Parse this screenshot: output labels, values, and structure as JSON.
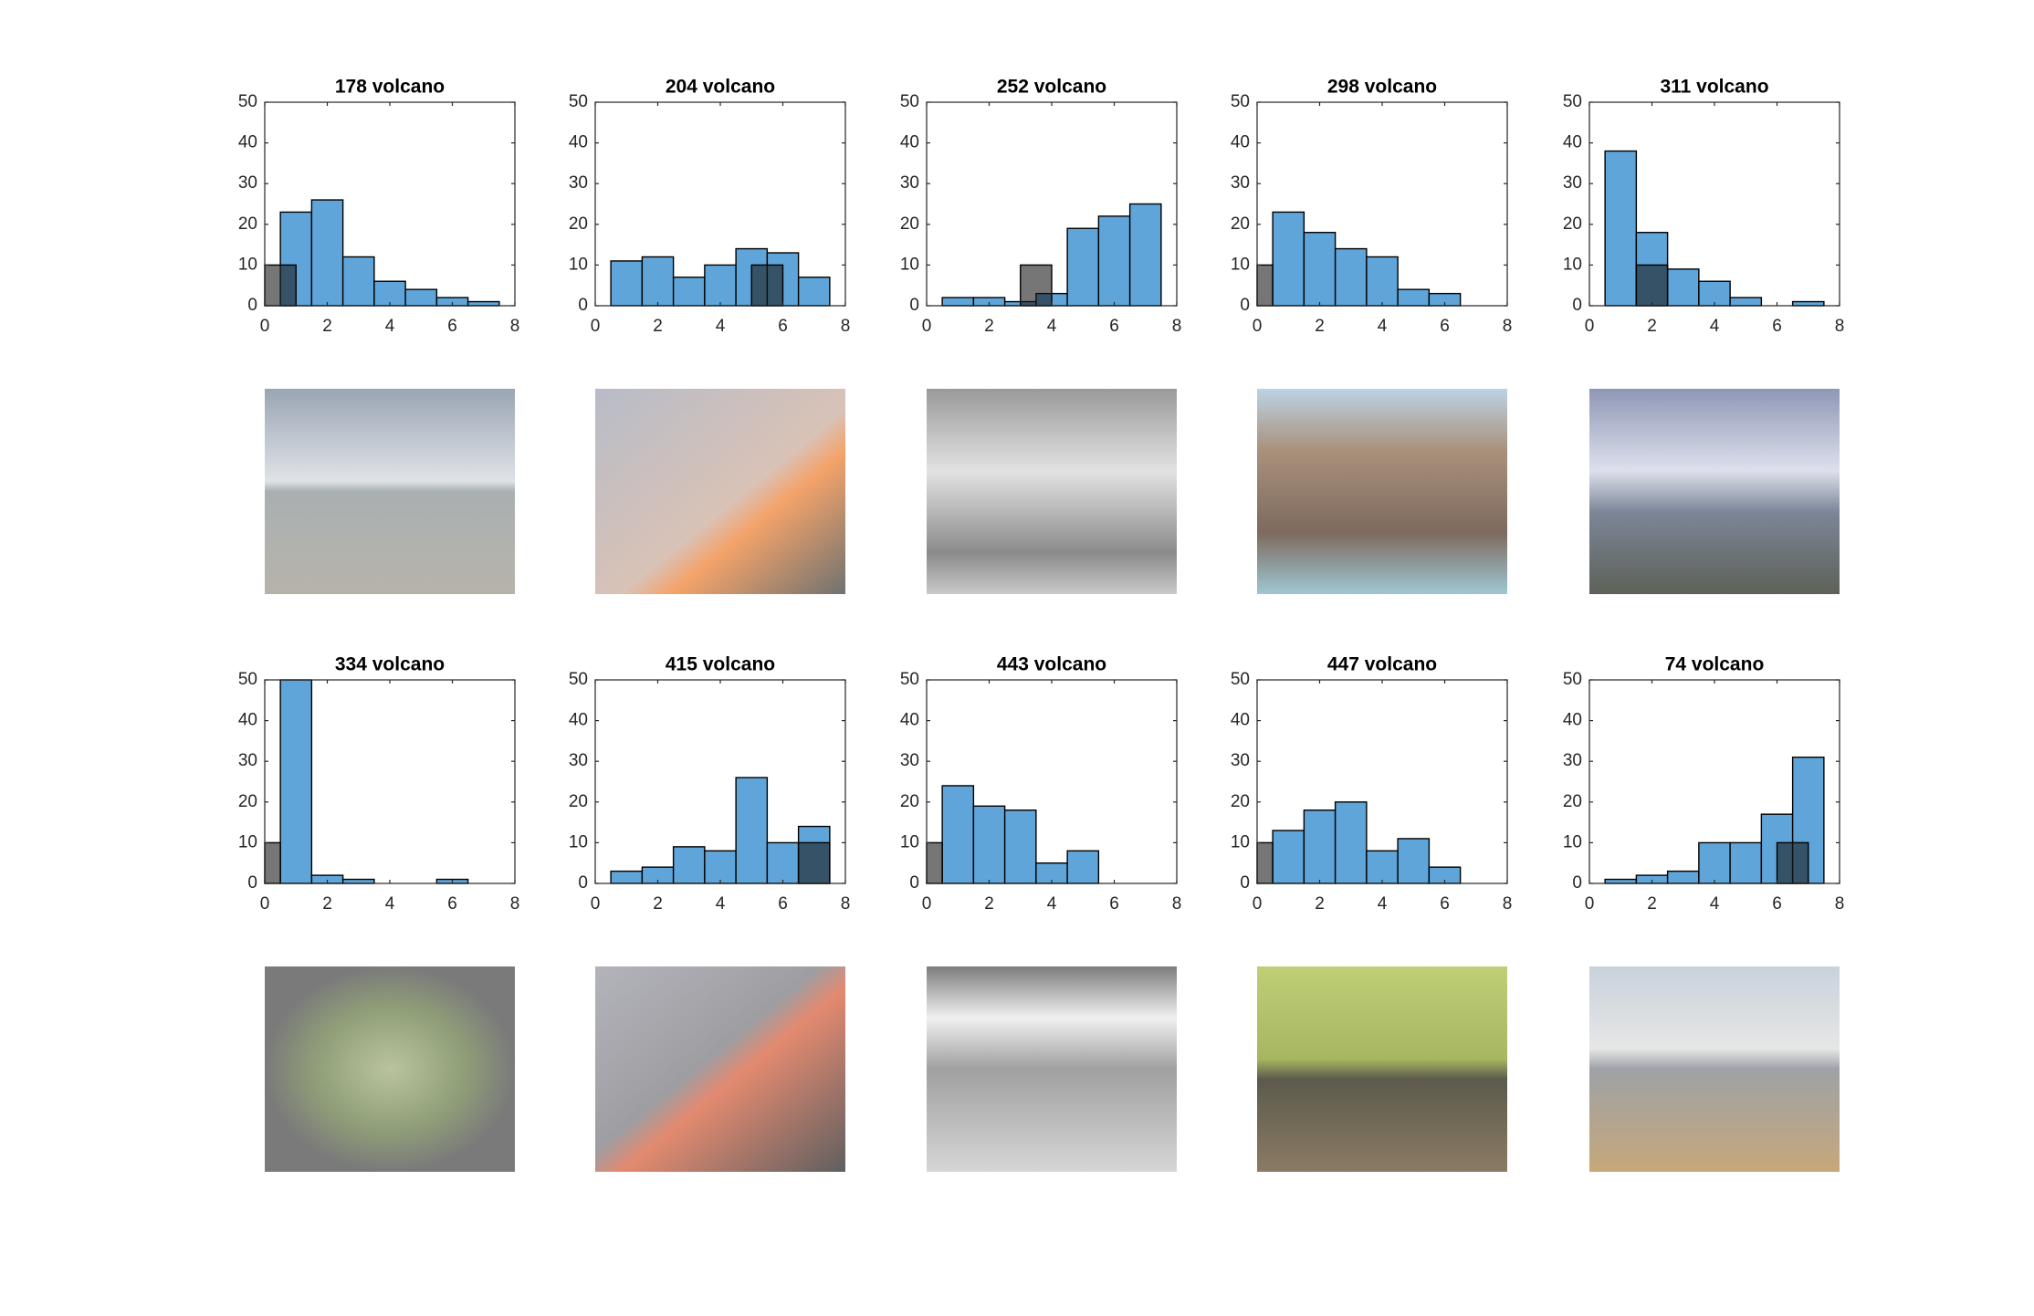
{
  "chart_data": [
    {
      "type": "histogram",
      "title": "178 volcano",
      "xlim": [
        0,
        8
      ],
      "ylim": [
        0,
        50
      ],
      "xticks": [
        0,
        2,
        4,
        6,
        8
      ],
      "yticks": [
        0,
        10,
        20,
        30,
        40,
        50
      ],
      "series": [
        {
          "color": "#5fa5d9",
          "bins": [
            0.5,
            1.5,
            2.5,
            3.5,
            4.5,
            5.5,
            6.5,
            7.5
          ],
          "values": [
            23,
            26,
            12,
            6,
            4,
            2,
            1
          ]
        },
        {
          "color": "#1a1a1a",
          "bins": [
            0,
            1
          ],
          "values": [
            10
          ]
        }
      ]
    },
    {
      "type": "histogram",
      "title": "204 volcano",
      "xlim": [
        0,
        8
      ],
      "ylim": [
        0,
        50
      ],
      "xticks": [
        0,
        2,
        4,
        6,
        8
      ],
      "yticks": [
        0,
        10,
        20,
        30,
        40,
        50
      ],
      "series": [
        {
          "color": "#5fa5d9",
          "bins": [
            0.5,
            1.5,
            2.5,
            3.5,
            4.5,
            5.5,
            6.5,
            7.5
          ],
          "values": [
            11,
            12,
            7,
            10,
            14,
            13,
            7
          ]
        },
        {
          "color": "#1a1a1a",
          "bins": [
            5,
            6
          ],
          "values": [
            10
          ]
        }
      ]
    },
    {
      "type": "histogram",
      "title": "252 volcano",
      "xlim": [
        0,
        8
      ],
      "ylim": [
        0,
        50
      ],
      "xticks": [
        0,
        2,
        4,
        6,
        8
      ],
      "yticks": [
        0,
        10,
        20,
        30,
        40,
        50
      ],
      "series": [
        {
          "color": "#5fa5d9",
          "bins": [
            0.5,
            1.5,
            2.5,
            3.5,
            4.5,
            5.5,
            6.5,
            7.5
          ],
          "values": [
            2,
            2,
            1,
            3,
            19,
            22,
            25
          ]
        },
        {
          "color": "#1a1a1a",
          "bins": [
            3,
            4
          ],
          "values": [
            10
          ]
        }
      ]
    },
    {
      "type": "histogram",
      "title": "298 volcano",
      "xlim": [
        0,
        8
      ],
      "ylim": [
        0,
        50
      ],
      "xticks": [
        0,
        2,
        4,
        6,
        8
      ],
      "yticks": [
        0,
        10,
        20,
        30,
        40,
        50
      ],
      "series": [
        {
          "color": "#5fa5d9",
          "bins": [
            0.5,
            1.5,
            2.5,
            3.5,
            4.5,
            5.5,
            6.5
          ],
          "values": [
            23,
            18,
            14,
            12,
            4,
            3
          ]
        },
        {
          "color": "#1a1a1a",
          "bins": [
            0,
            0.5
          ],
          "values": [
            10
          ]
        }
      ]
    },
    {
      "type": "histogram",
      "title": "311 volcano",
      "xlim": [
        0,
        8
      ],
      "ylim": [
        0,
        50
      ],
      "xticks": [
        0,
        2,
        4,
        6,
        8
      ],
      "yticks": [
        0,
        10,
        20,
        30,
        40,
        50
      ],
      "series": [
        {
          "color": "#5fa5d9",
          "bins": [
            0.5,
            1.5,
            2.5,
            3.5,
            4.5,
            5.5,
            6.5,
            7.5
          ],
          "values": [
            38,
            18,
            9,
            6,
            2,
            0,
            1
          ]
        },
        {
          "color": "#1a1a1a",
          "bins": [
            1.5,
            2.5
          ],
          "values": [
            10
          ]
        }
      ]
    },
    {
      "type": "histogram",
      "title": "334 volcano",
      "xlim": [
        0,
        8
      ],
      "ylim": [
        0,
        50
      ],
      "xticks": [
        0,
        2,
        4,
        6,
        8
      ],
      "yticks": [
        0,
        10,
        20,
        30,
        40,
        50
      ],
      "series": [
        {
          "color": "#5fa5d9",
          "bins": [
            0.5,
            1.5,
            2.5,
            3.5,
            4.5,
            5.5,
            6.5
          ],
          "values": [
            50,
            2,
            1,
            0,
            0,
            1
          ]
        },
        {
          "color": "#1a1a1a",
          "bins": [
            0,
            0.5
          ],
          "values": [
            10
          ]
        }
      ]
    },
    {
      "type": "histogram",
      "title": "415 volcano",
      "xlim": [
        0,
        8
      ],
      "ylim": [
        0,
        50
      ],
      "xticks": [
        0,
        2,
        4,
        6,
        8
      ],
      "yticks": [
        0,
        10,
        20,
        30,
        40,
        50
      ],
      "series": [
        {
          "color": "#5fa5d9",
          "bins": [
            0.5,
            1.5,
            2.5,
            3.5,
            4.5,
            5.5,
            6.5,
            7.5
          ],
          "values": [
            3,
            4,
            9,
            8,
            26,
            10,
            14
          ]
        },
        {
          "color": "#1a1a1a",
          "bins": [
            6.5,
            7.5
          ],
          "values": [
            10
          ]
        }
      ]
    },
    {
      "type": "histogram",
      "title": "443 volcano",
      "xlim": [
        0,
        8
      ],
      "ylim": [
        0,
        50
      ],
      "xticks": [
        0,
        2,
        4,
        6,
        8
      ],
      "yticks": [
        0,
        10,
        20,
        30,
        40,
        50
      ],
      "series": [
        {
          "color": "#5fa5d9",
          "bins": [
            0.5,
            1.5,
            2.5,
            3.5,
            4.5,
            5.5
          ],
          "values": [
            24,
            19,
            18,
            5,
            8
          ]
        },
        {
          "color": "#1a1a1a",
          "bins": [
            0,
            0.5
          ],
          "values": [
            10
          ]
        }
      ]
    },
    {
      "type": "histogram",
      "title": "447 volcano",
      "xlim": [
        0,
        8
      ],
      "ylim": [
        0,
        50
      ],
      "xticks": [
        0,
        2,
        4,
        6,
        8
      ],
      "yticks": [
        0,
        10,
        20,
        30,
        40,
        50
      ],
      "series": [
        {
          "color": "#5fa5d9",
          "bins": [
            0.5,
            1.5,
            2.5,
            3.5,
            4.5,
            5.5,
            6.5
          ],
          "values": [
            13,
            18,
            20,
            8,
            11,
            4
          ]
        },
        {
          "color": "#1a1a1a",
          "bins": [
            0,
            0.5
          ],
          "values": [
            10
          ]
        }
      ]
    },
    {
      "type": "histogram",
      "title": "74 volcano",
      "xlim": [
        0,
        8
      ],
      "ylim": [
        0,
        50
      ],
      "xticks": [
        0,
        2,
        4,
        6,
        8
      ],
      "yticks": [
        0,
        10,
        20,
        30,
        40,
        50
      ],
      "series": [
        {
          "color": "#5fa5d9",
          "bins": [
            0.5,
            1.5,
            2.5,
            3.5,
            4.5,
            5.5,
            6.5,
            7.5
          ],
          "values": [
            1,
            2,
            3,
            10,
            10,
            17,
            31
          ]
        },
        {
          "color": "#1a1a1a",
          "bins": [
            6,
            7
          ],
          "values": [
            10
          ]
        }
      ]
    }
  ]
}
